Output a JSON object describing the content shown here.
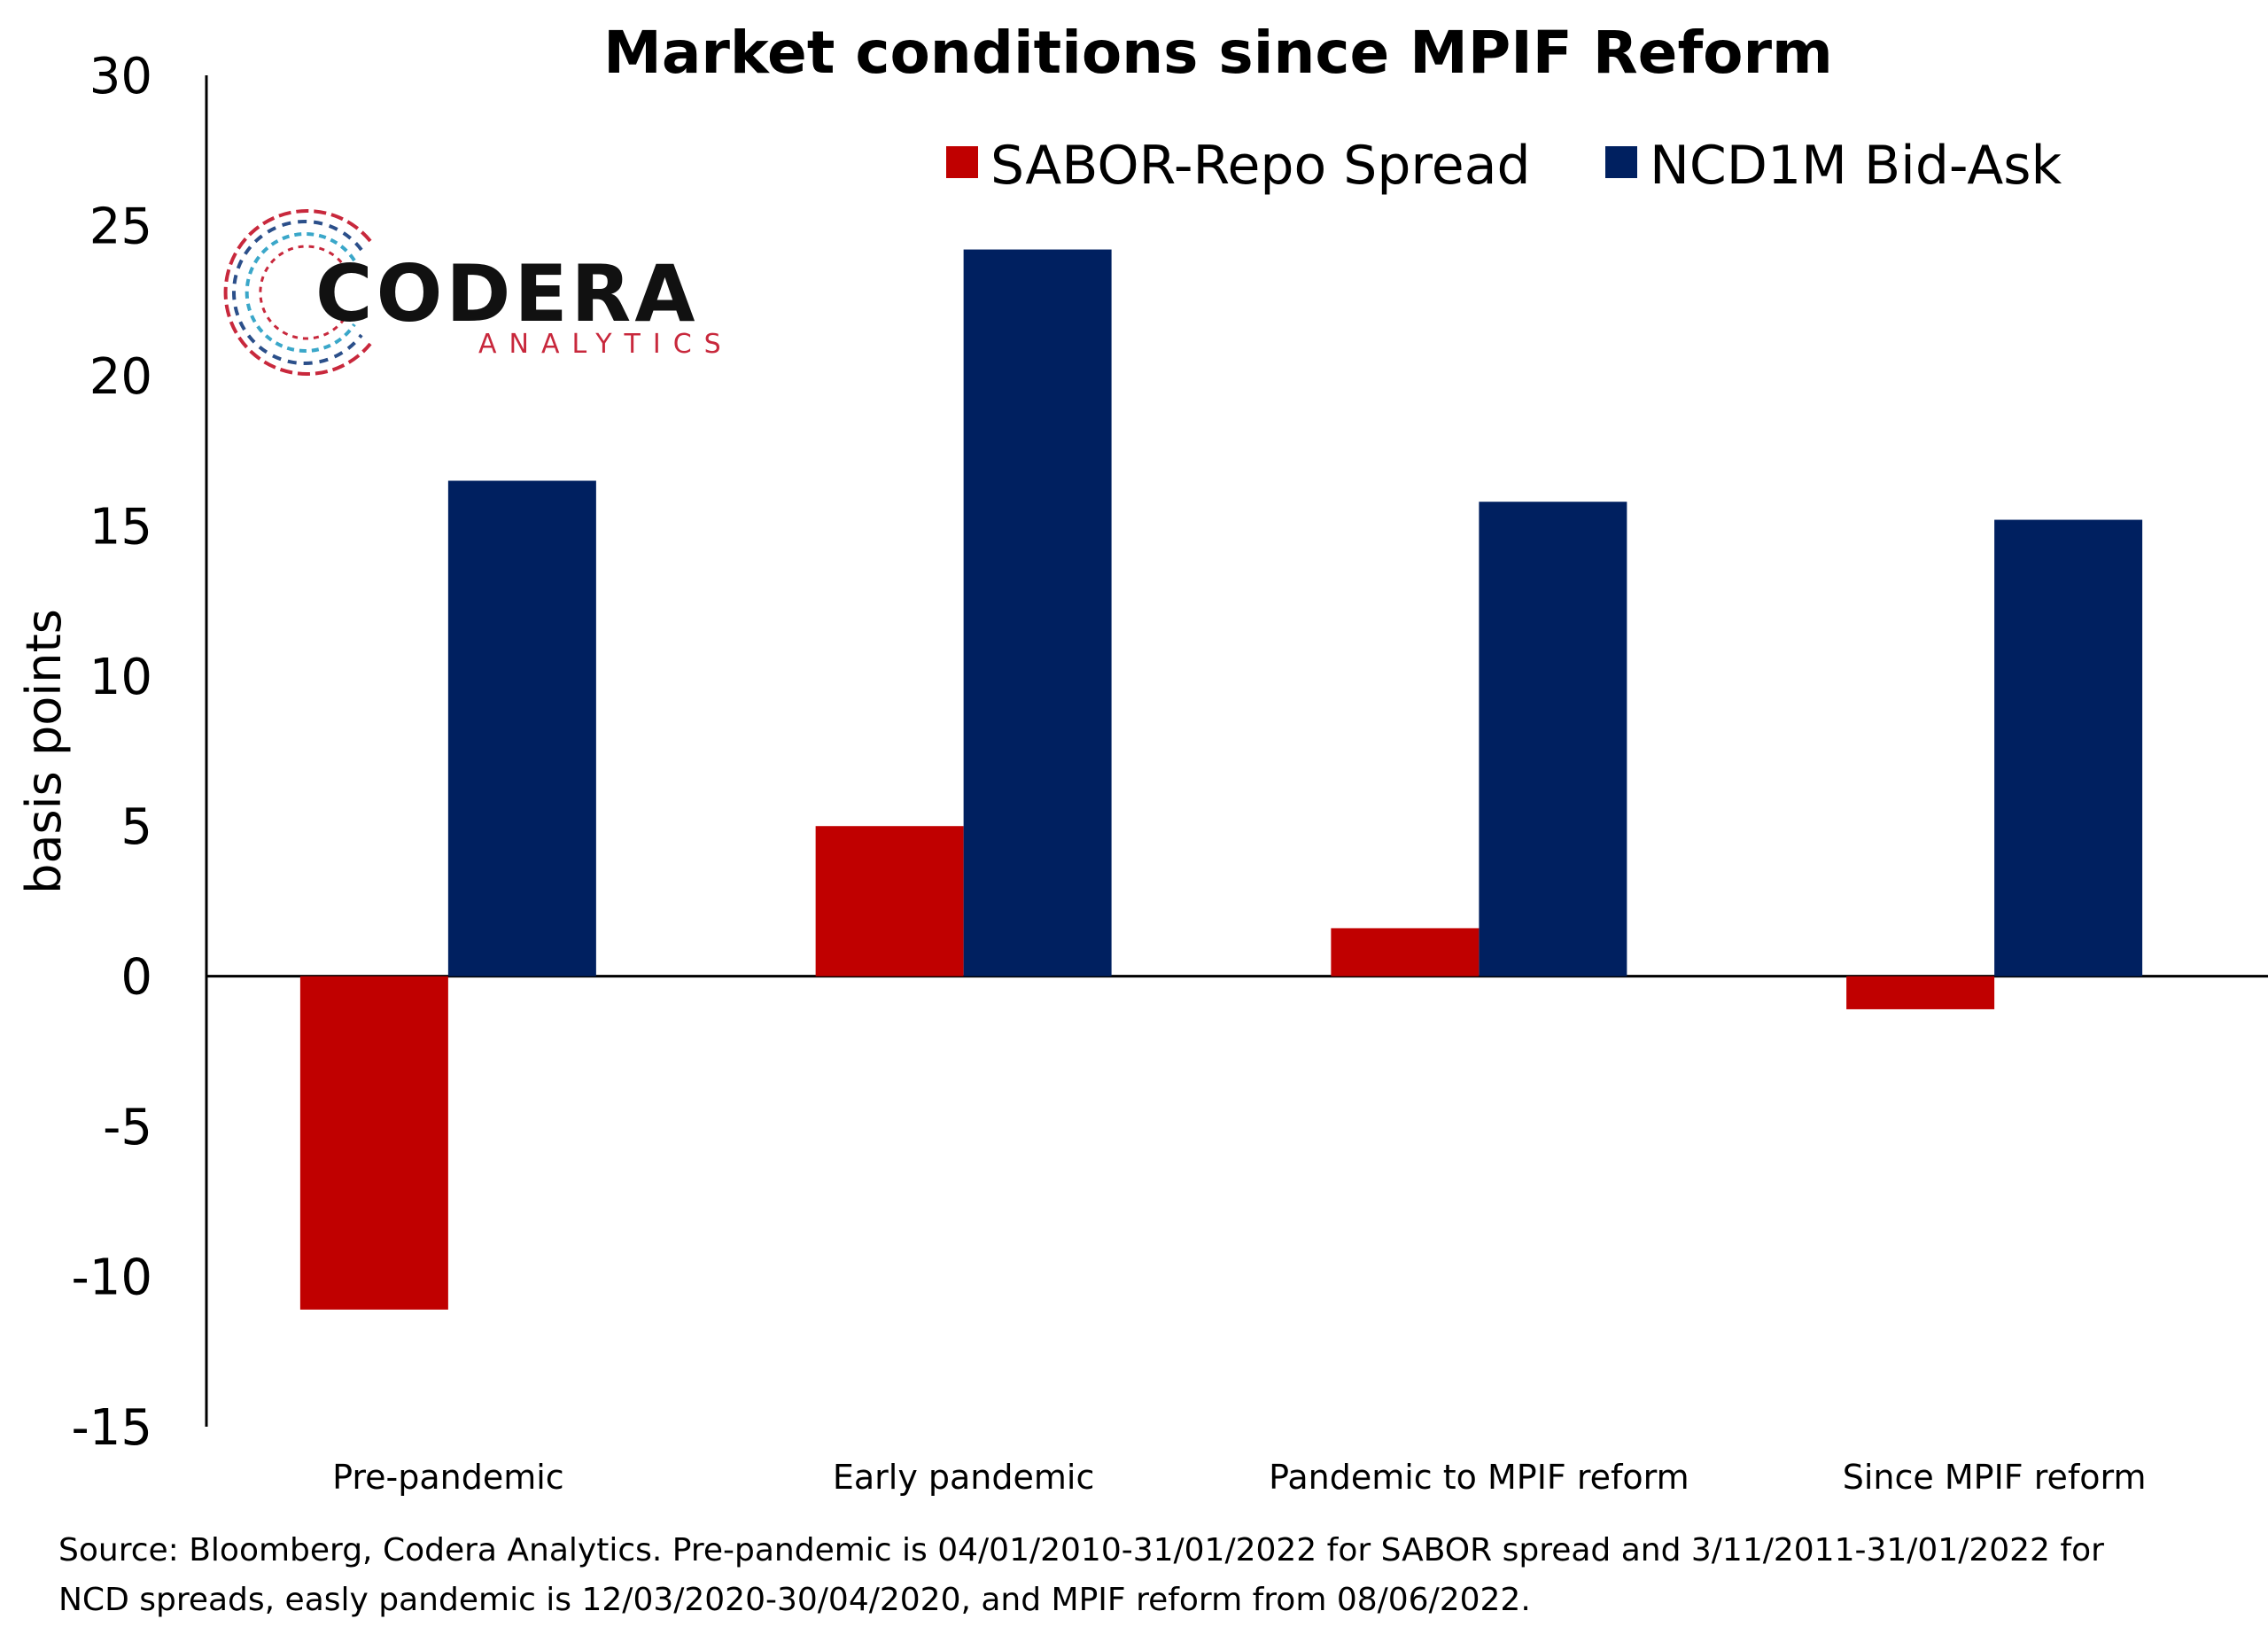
{
  "chart_data": {
    "type": "bar",
    "title": "Market conditions since MPIF Reform",
    "ylabel": "basis points",
    "xlabel": "",
    "categories": [
      "Pre-pandemic",
      "Early pandemic",
      "Pandemic to MPIF reform",
      "Since MPIF reform"
    ],
    "series": [
      {
        "name": "SABOR-Repo Spread",
        "color": "#C00000",
        "values": [
          -11.1,
          5.0,
          1.6,
          -1.1
        ]
      },
      {
        "name": "NCD1M Bid-Ask",
        "color": "#002060",
        "values": [
          16.5,
          24.2,
          15.8,
          15.2
        ]
      }
    ],
    "ylim": [
      -15,
      30
    ],
    "yticks": [
      30,
      25,
      20,
      15,
      10,
      5,
      0,
      -5,
      -10,
      -15
    ],
    "grid": false,
    "legend": "top-right"
  },
  "logo": {
    "name": "CODERA",
    "subtitle": "ANALYTICS"
  },
  "source_line1": "Source: Bloomberg, Codera Analytics. Pre-pandemic is 04/01/2010-31/01/2022 for SABOR spread and 3/11/2011-31/01/2022 for",
  "source_line2": "NCD spreads, easly pandemic is 12/03/2020-30/04/2020, and MPIF reform from 08/06/2022."
}
